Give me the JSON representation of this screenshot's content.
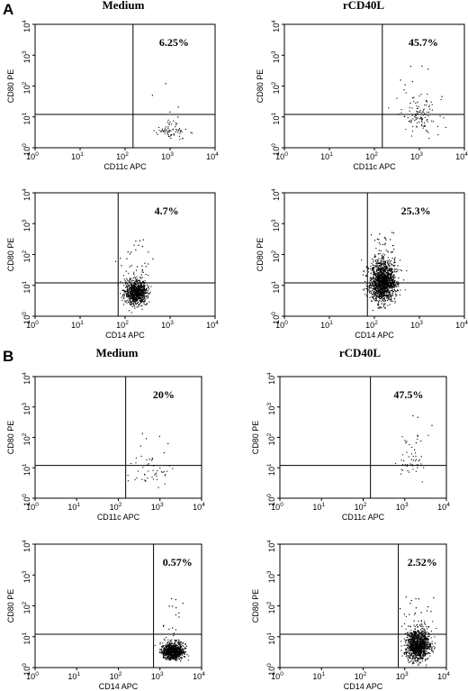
{
  "sections": [
    {
      "letter": "A",
      "columns": [
        "Medium",
        "rCD40L"
      ],
      "plots": [
        {
          "type": "scatter",
          "xlabel": "CD11c APC",
          "ylabel": "CD80 PE",
          "quadrant_pct": "6.25%",
          "xlim": [
            1,
            10000
          ],
          "ylim": [
            1,
            10000
          ],
          "log": true,
          "gate": {
            "x": 150,
            "y": 12
          },
          "cluster": {
            "x": 1000,
            "y": 3,
            "sx": 0.18,
            "sy": 0.18,
            "n": 70
          },
          "sparse": {
            "n": 5
          }
        },
        {
          "type": "scatter",
          "xlabel": "CD11c APC",
          "ylabel": "CD80 PE",
          "quadrant_pct": "45.7%",
          "xlim": [
            1,
            10000
          ],
          "ylim": [
            1,
            10000
          ],
          "log": true,
          "gate": {
            "x": 150,
            "y": 12
          },
          "cluster": {
            "x": 1000,
            "y": 8,
            "sx": 0.2,
            "sy": 0.35,
            "n": 110
          },
          "sparse": {
            "n": 12
          }
        },
        {
          "type": "scatter",
          "xlabel": "CD14 APC",
          "ylabel": "CD80 PE",
          "quadrant_pct": "4.7%",
          "xlim": [
            1,
            10000
          ],
          "ylim": [
            1,
            10000
          ],
          "log": true,
          "gate": {
            "x": 70,
            "y": 12
          },
          "cluster": {
            "x": 170,
            "y": 5,
            "sx": 0.12,
            "sy": 0.25,
            "n": 900
          },
          "sparse": {
            "n": 30
          }
        },
        {
          "type": "scatter",
          "xlabel": "CD14 APC",
          "ylabel": "CD80 PE",
          "quadrant_pct": "25.3%",
          "xlim": [
            1,
            10000
          ],
          "ylim": [
            1,
            10000
          ],
          "log": true,
          "gate": {
            "x": 70,
            "y": 12
          },
          "cluster": {
            "x": 150,
            "y": 9,
            "sx": 0.14,
            "sy": 0.42,
            "n": 1500
          },
          "sparse": {
            "n": 30
          }
        }
      ]
    },
    {
      "letter": "B",
      "columns": [
        "Medium",
        "rCD40L"
      ],
      "plots": [
        {
          "type": "scatter",
          "xlabel": "CD11c APC",
          "ylabel": "CD80 PE",
          "quadrant_pct": "20%",
          "xlim": [
            1,
            10000
          ],
          "ylim": [
            1,
            10000
          ],
          "log": true,
          "gate": {
            "x": 150,
            "y": 12
          },
          "cluster": {
            "x": 700,
            "y": 5,
            "sx": 0.25,
            "sy": 0.25,
            "n": 45
          },
          "sparse": {
            "n": 8
          }
        },
        {
          "type": "scatter",
          "xlabel": "CD11c APC",
          "ylabel": "CD80 PE",
          "quadrant_pct": "47.5%",
          "xlim": [
            1,
            10000
          ],
          "ylim": [
            1,
            10000
          ],
          "log": true,
          "gate": {
            "x": 150,
            "y": 12
          },
          "cluster": {
            "x": 1500,
            "y": 12,
            "sx": 0.2,
            "sy": 0.45,
            "n": 45
          },
          "sparse": {
            "n": 10
          }
        },
        {
          "type": "scatter",
          "xlabel": "CD14 APC",
          "ylabel": "CD80 PE",
          "quadrant_pct": "0.57%",
          "xlim": [
            1,
            10000
          ],
          "ylim": [
            1,
            10000
          ],
          "log": true,
          "gate": {
            "x": 700,
            "y": 12
          },
          "cluster": {
            "x": 2000,
            "y": 3,
            "sx": 0.13,
            "sy": 0.17,
            "n": 900
          },
          "sparse": {
            "n": 15
          }
        },
        {
          "type": "scatter",
          "xlabel": "CD14 APC",
          "ylabel": "CD80 PE",
          "quadrant_pct": "2.52%",
          "xlim": [
            1,
            10000
          ],
          "ylim": [
            1,
            10000
          ],
          "log": true,
          "gate": {
            "x": 700,
            "y": 12
          },
          "cluster": {
            "x": 2000,
            "y": 4,
            "sx": 0.14,
            "sy": 0.3,
            "n": 1200
          },
          "sparse": {
            "n": 25
          }
        }
      ]
    }
  ],
  "tick_labels": [
    "10",
    "10",
    "10",
    "10",
    "10"
  ],
  "tick_exponents": [
    "0",
    "1",
    "2",
    "3",
    "4"
  ]
}
